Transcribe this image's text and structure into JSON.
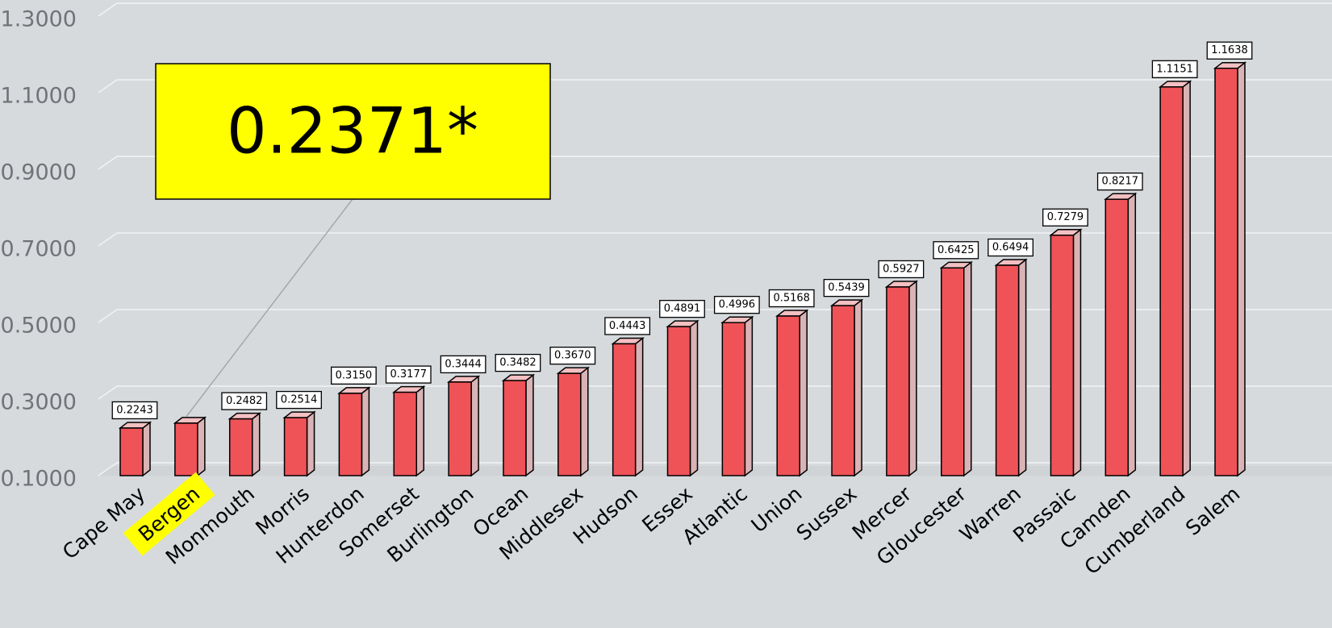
{
  "chart_data": {
    "type": "bar",
    "categories": [
      "Cape May",
      "Bergen",
      "Monmouth",
      "Morris",
      "Hunterdon",
      "Somerset",
      "Burlington",
      "Ocean",
      "Middlesex",
      "Hudson",
      "Essex",
      "Atlantic",
      "Union",
      "Sussex",
      "Mercer",
      "Gloucester",
      "Warren",
      "Passaic",
      "Camden",
      "Cumberland",
      "Salem"
    ],
    "values": [
      0.2243,
      0.2371,
      0.2482,
      0.2514,
      0.315,
      0.3177,
      0.3444,
      0.3482,
      0.367,
      0.4443,
      0.4891,
      0.4996,
      0.5168,
      0.5439,
      0.5927,
      0.6425,
      0.6494,
      0.7279,
      0.8217,
      1.1151,
      1.1638
    ],
    "value_labels": [
      "0.2243",
      null,
      "0.2482",
      "0.2514",
      "0.3150",
      "0.3177",
      "0.3444",
      "0.3482",
      "0.3670",
      "0.4443",
      "0.4891",
      "0.4996",
      "0.5168",
      "0.5439",
      "0.5927",
      "0.6425",
      "0.6494",
      "0.7279",
      "0.8217",
      "1.1151",
      "1.1638"
    ],
    "color": "#ef5358",
    "ylim": [
      0.1,
      1.3
    ],
    "yticks": [
      {
        "value": 0.1,
        "label": "0.1000"
      },
      {
        "value": 0.3,
        "label": "0.3000"
      },
      {
        "value": 0.5,
        "label": "0.5000"
      },
      {
        "value": 0.7,
        "label": "0.7000"
      },
      {
        "value": 0.9,
        "label": "0.9000"
      },
      {
        "value": 1.1,
        "label": "1.1000"
      },
      {
        "value": 1.3,
        "label": "1.3000"
      }
    ],
    "grid": true,
    "annotation": {
      "text": "0.2371*",
      "category_index": 1,
      "color": "#ffff00"
    }
  }
}
